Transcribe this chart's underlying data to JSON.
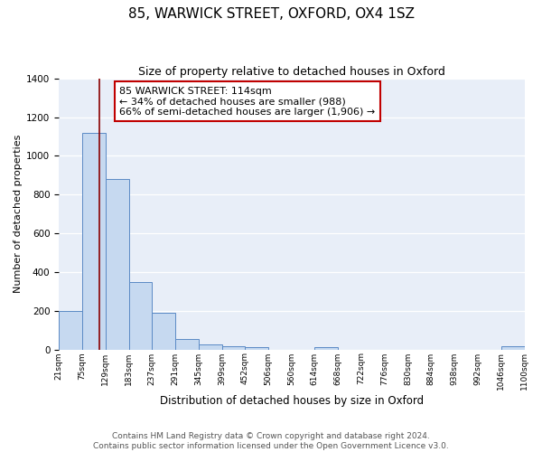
{
  "title": "85, WARWICK STREET, OXFORD, OX4 1SZ",
  "subtitle": "Size of property relative to detached houses in Oxford",
  "xlabel": "Distribution of detached houses by size in Oxford",
  "ylabel": "Number of detached properties",
  "bin_edges": [
    21,
    75,
    129,
    183,
    237,
    291,
    345,
    399,
    452,
    506,
    560,
    614,
    668,
    722,
    776,
    830,
    884,
    938,
    992,
    1046,
    1100
  ],
  "bar_heights": [
    200,
    1120,
    880,
    350,
    190,
    55,
    25,
    15,
    10,
    0,
    0,
    10,
    0,
    0,
    0,
    0,
    0,
    0,
    0,
    15
  ],
  "bar_color": "#c6d9f0",
  "bar_edge_color": "#5b8ac5",
  "property_size": 114,
  "vline_color": "#8B0000",
  "annotation_text": "85 WARWICK STREET: 114sqm\n← 34% of detached houses are smaller (988)\n66% of semi-detached houses are larger (1,906) →",
  "annotation_box_color": "#ffffff",
  "annotation_box_edge_color": "#c00000",
  "ylim": [
    0,
    1400
  ],
  "yticks": [
    0,
    200,
    400,
    600,
    800,
    1000,
    1200,
    1400
  ],
  "background_color": "#e8eef8",
  "footer_line1": "Contains HM Land Registry data © Crown copyright and database right 2024.",
  "footer_line2": "Contains public sector information licensed under the Open Government Licence v3.0.",
  "title_fontsize": 11,
  "subtitle_fontsize": 9,
  "annotation_fontsize": 8,
  "footer_fontsize": 6.5,
  "ylabel_fontsize": 8,
  "xlabel_fontsize": 8.5
}
